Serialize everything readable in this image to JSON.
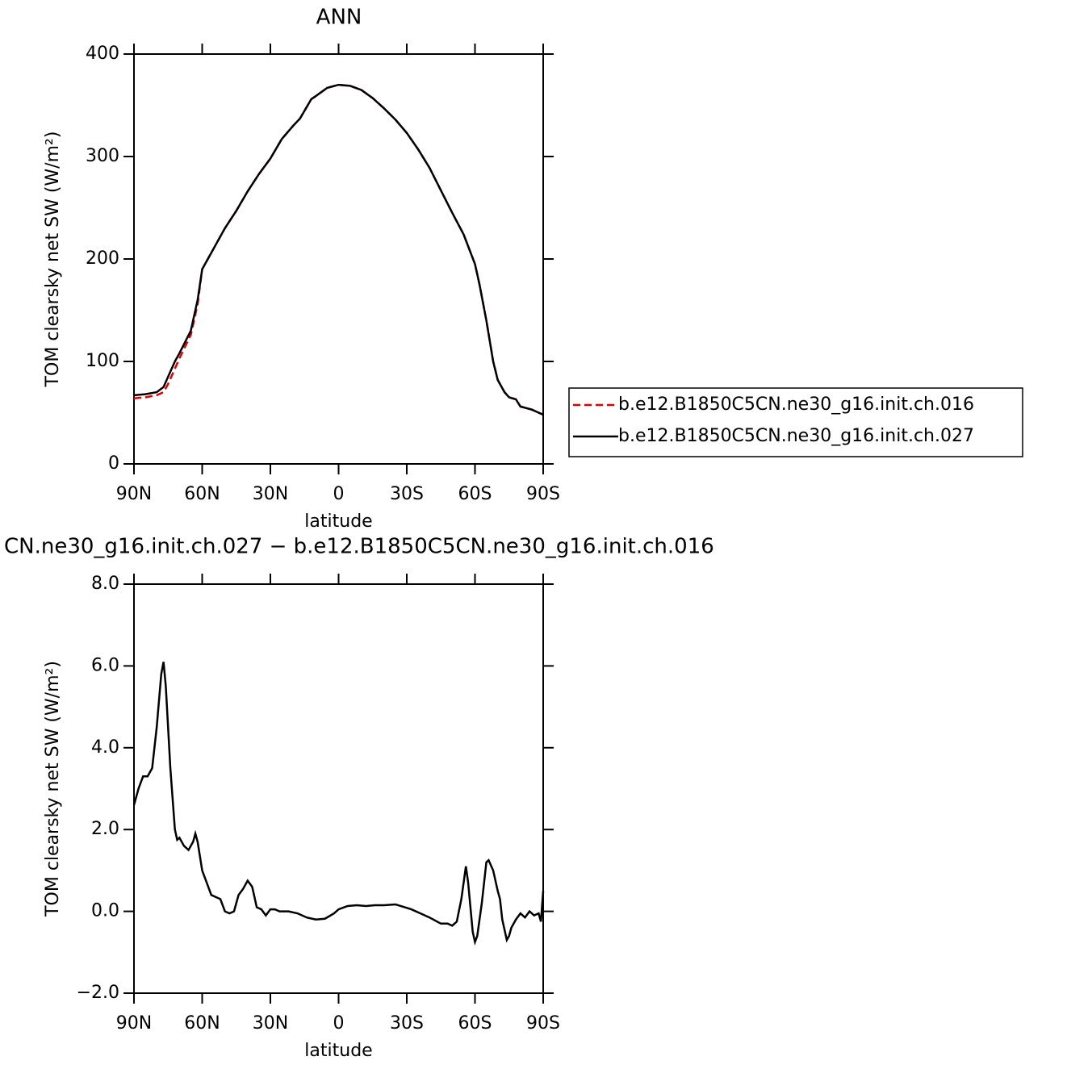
{
  "chart_data": [
    {
      "type": "line",
      "title": "ANN",
      "xlabel": "latitude",
      "ylabel": "TOM clearsky net SW (W/m²)",
      "x": [
        90,
        85,
        80,
        77,
        75,
        72,
        70,
        65,
        62,
        60,
        55,
        50,
        45,
        40,
        35,
        30,
        25,
        20,
        17,
        12,
        10,
        5,
        0,
        -5,
        -10,
        -15,
        -20,
        -25,
        -30,
        -35,
        -40,
        -45,
        -50,
        -55,
        -60,
        -62,
        -65,
        -68,
        -70,
        -73,
        -75,
        -78,
        -80,
        -85,
        -90
      ],
      "series": [
        {
          "name": "b.e12.B1850C5CN.ne30_g16.init.ch.016",
          "color": "#e00000",
          "dash": true,
          "values": [
            64,
            65,
            67,
            70,
            78,
            93,
            103,
            126,
            156,
            190,
            210,
            230,
            247,
            266,
            283,
            298,
            317,
            330,
            337,
            356,
            359,
            367,
            370,
            369,
            365,
            357,
            347,
            336,
            323,
            307,
            289,
            267,
            245,
            224,
            195,
            175,
            140,
            100,
            82,
            70,
            65,
            63,
            56,
            53,
            48
          ]
        },
        {
          "name": "b.e12.B1850C5CN.ne30_g16.init.ch.027",
          "color": "#000000",
          "dash": false,
          "values": [
            67,
            68,
            70,
            75,
            85,
            100,
            108,
            130,
            160,
            190,
            210,
            230,
            247,
            266,
            283,
            298,
            317,
            330,
            337,
            356,
            359,
            367,
            370,
            369,
            365,
            357,
            347,
            336,
            323,
            307,
            289,
            267,
            245,
            224,
            195,
            175,
            140,
            100,
            82,
            70,
            65,
            63,
            56,
            53,
            48
          ]
        }
      ],
      "xlim": [
        90,
        -90
      ],
      "xticks": [
        {
          "value": 90,
          "label": "90N"
        },
        {
          "value": 60,
          "label": "60N"
        },
        {
          "value": 30,
          "label": "30N"
        },
        0,
        {
          "value": -30,
          "label": "30S"
        },
        {
          "value": -60,
          "label": "60S"
        },
        {
          "value": -90,
          "label": "90S"
        }
      ],
      "ylim": [
        0,
        400
      ],
      "yticks": [
        0,
        100,
        200,
        300,
        400
      ],
      "legend": "right"
    },
    {
      "type": "line",
      "title": "CN.ne30_g16.init.ch.027 − b.e12.B1850C5CN.ne30_g16.init.ch.016",
      "xlabel": "latitude",
      "ylabel": "TOM clearsky net SW (W/m²)",
      "x": [
        90,
        88,
        86,
        84,
        82,
        80,
        78,
        77,
        76,
        74,
        72,
        71,
        70,
        68,
        66,
        64,
        63,
        62,
        60,
        58,
        56,
        54,
        52,
        50,
        48,
        46,
        44,
        42,
        40,
        38,
        36,
        34,
        32,
        30,
        28,
        26,
        22,
        18,
        14,
        10,
        6,
        2,
        0,
        -4,
        -8,
        -12,
        -16,
        -20,
        -25,
        -28,
        -32,
        -36,
        -40,
        -45,
        -48,
        -50,
        -52,
        -54,
        -56,
        -57,
        -59,
        -60,
        -61,
        -63,
        -65,
        -66,
        -68,
        -70,
        -71,
        -72,
        -74,
        -75,
        -76,
        -78,
        -80,
        -82,
        -84,
        -86,
        -88,
        -89,
        -90
      ],
      "series": [
        {
          "name": null,
          "color": "#000000",
          "dash": false,
          "values": [
            2.6,
            3.0,
            3.3,
            3.3,
            3.5,
            4.5,
            5.8,
            6.1,
            5.5,
            3.5,
            2.0,
            1.75,
            1.8,
            1.6,
            1.5,
            1.7,
            1.9,
            1.7,
            1.0,
            0.7,
            0.4,
            0.35,
            0.3,
            0.0,
            -0.05,
            0.0,
            0.4,
            0.55,
            0.75,
            0.6,
            0.1,
            0.05,
            -0.1,
            0.05,
            0.05,
            0,
            0,
            -0.05,
            -0.15,
            -0.2,
            -0.18,
            -0.05,
            0.05,
            0.13,
            0.15,
            0.13,
            0.15,
            0.15,
            0.17,
            0.12,
            0.05,
            -0.05,
            -0.15,
            -0.3,
            -0.3,
            -0.35,
            -0.25,
            0.3,
            1.1,
            0.7,
            -0.5,
            -0.75,
            -0.6,
            0.2,
            1.2,
            1.25,
            1.0,
            0.5,
            0.3,
            -0.2,
            -0.7,
            -0.6,
            -0.4,
            -0.2,
            -0.05,
            -0.15,
            0.0,
            -0.1,
            -0.05,
            -0.25,
            0.5
          ]
        }
      ],
      "xlim": [
        90,
        -90
      ],
      "xticks": [
        {
          "value": 90,
          "label": "90N"
        },
        {
          "value": 60,
          "label": "60N"
        },
        {
          "value": 30,
          "label": "30N"
        },
        0,
        {
          "value": -30,
          "label": "30S"
        },
        {
          "value": -60,
          "label": "60S"
        },
        {
          "value": -90,
          "label": "90S"
        }
      ],
      "ylim": [
        -2,
        8
      ],
      "yticks": [
        {
          "value": -2,
          "label": "−2.0"
        },
        {
          "value": 0,
          "label": "0.0"
        },
        {
          "value": 2,
          "label": "2.0"
        },
        {
          "value": 4,
          "label": "4.0"
        },
        {
          "value": 6,
          "label": "6.0"
        },
        {
          "value": 8,
          "label": "8.0"
        }
      ]
    }
  ]
}
